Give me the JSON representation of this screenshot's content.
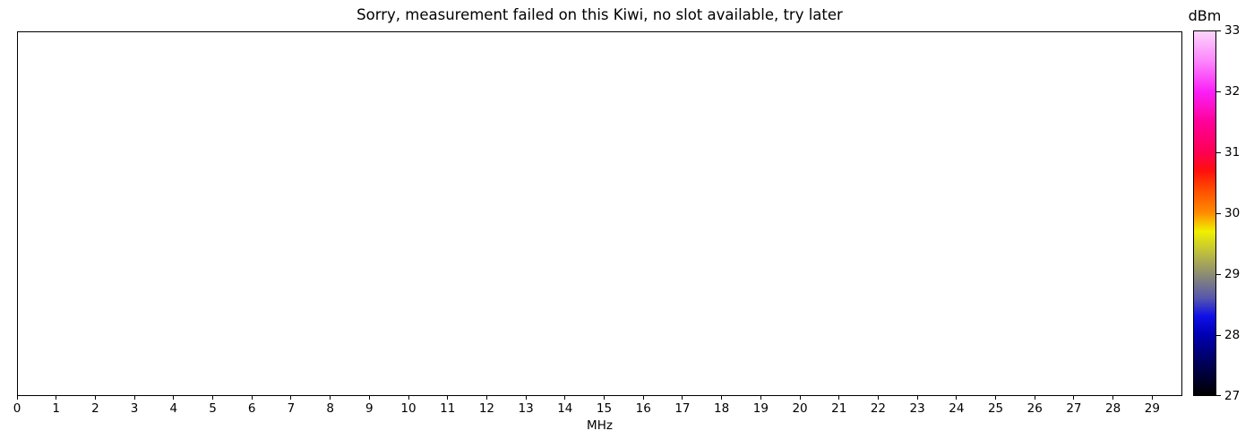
{
  "figure": {
    "background": "#ffffff",
    "border_color": "#000000",
    "text_color": "#000000"
  },
  "chart_data": {
    "type": "heatmap",
    "title": "Sorry, measurement failed on this Kiwi, no slot available, try later",
    "xlabel": "MHz",
    "xlim": [
      0,
      29.77
    ],
    "x_ticks": [
      0,
      1,
      2,
      3,
      4,
      5,
      6,
      7,
      8,
      9,
      10,
      11,
      12,
      13,
      14,
      15,
      16,
      17,
      18,
      19,
      20,
      21,
      22,
      23,
      24,
      25,
      26,
      27,
      28,
      29
    ],
    "y_ticks": [],
    "series": [],
    "grid": false,
    "colorbar": {
      "label": "dBm",
      "lim": [
        27,
        33
      ],
      "ticks": [
        27,
        28,
        29,
        30,
        31,
        32,
        33
      ],
      "gradient_stops": [
        {
          "value": 27.0,
          "color": "#000000"
        },
        {
          "value": 27.5,
          "color": "#000054"
        },
        {
          "value": 28.0,
          "color": "#0000b4"
        },
        {
          "value": 28.3,
          "color": "#0f0fe8"
        },
        {
          "value": 28.6,
          "color": "#5656ae"
        },
        {
          "value": 29.0,
          "color": "#8d8d72"
        },
        {
          "value": 29.35,
          "color": "#bebe3f"
        },
        {
          "value": 29.7,
          "color": "#f0f000"
        },
        {
          "value": 30.0,
          "color": "#ff8d00"
        },
        {
          "value": 30.4,
          "color": "#ff4a00"
        },
        {
          "value": 30.7,
          "color": "#ff100d"
        },
        {
          "value": 31.0,
          "color": "#fd0052"
        },
        {
          "value": 31.5,
          "color": "#ff0098"
        },
        {
          "value": 32.0,
          "color": "#fa1ef6"
        },
        {
          "value": 32.5,
          "color": "#fd84fd"
        },
        {
          "value": 33.0,
          "color": "#fbd5fb"
        }
      ]
    }
  }
}
